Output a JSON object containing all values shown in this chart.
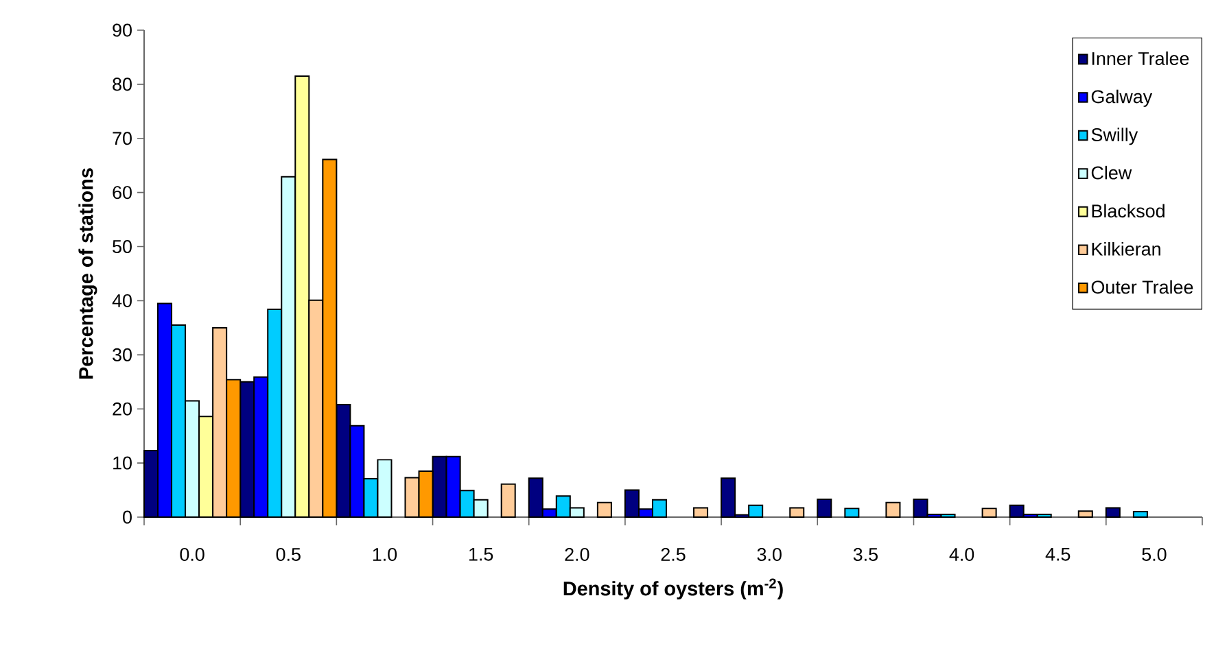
{
  "chart_data": {
    "type": "bar",
    "xlabel": "**Density of oysters (m$^{-2}$)**",
    "ylabel": "**Percentage of stations**",
    "categories": [
      "0.0",
      "0.5",
      "1.0",
      "1.5",
      "2.0",
      "2.5",
      "3.0",
      "3.5",
      "4.0",
      "4.5",
      "5.0"
    ],
    "series": [
      {
        "name": "Inner Tralee",
        "color": "#000080",
        "values": [
          12.3,
          25.0,
          20.8,
          11.2,
          7.2,
          5.0,
          7.2,
          3.3,
          3.3,
          2.2,
          1.7
        ]
      },
      {
        "name": "Galway",
        "color": "#0000ff",
        "values": [
          39.5,
          25.9,
          16.9,
          11.2,
          1.5,
          1.5,
          0.4,
          null,
          0.5,
          0.5,
          null
        ]
      },
      {
        "name": "Swilly",
        "color": "#00ccff",
        "values": [
          35.5,
          38.4,
          7.1,
          4.9,
          3.9,
          3.2,
          2.2,
          1.6,
          0.5,
          0.5,
          1.0
        ]
      },
      {
        "name": "Clew",
        "color": "#ccffff",
        "values": [
          21.5,
          62.9,
          10.6,
          3.2,
          1.7,
          null,
          null,
          null,
          null,
          null,
          null
        ]
      },
      {
        "name": "Blacksod",
        "color": "#ffff99",
        "values": [
          18.6,
          81.5,
          null,
          null,
          null,
          null,
          null,
          null,
          null,
          null,
          null
        ]
      },
      {
        "name": "Kilkieran",
        "color": "#ffcc99",
        "values": [
          35.0,
          40.1,
          7.3,
          6.1,
          2.7,
          1.7,
          1.7,
          2.7,
          1.6,
          1.1,
          null
        ]
      },
      {
        "name": "Outer Tralee",
        "color": "#ff9900",
        "values": [
          25.4,
          66.1,
          8.5,
          null,
          null,
          null,
          null,
          null,
          null,
          null,
          null
        ]
      }
    ],
    "ylim": [
      0,
      90
    ],
    "yticks": [
      0,
      10,
      20,
      30,
      40,
      50,
      60,
      70,
      80,
      90
    ],
    "legend": "top right"
  }
}
